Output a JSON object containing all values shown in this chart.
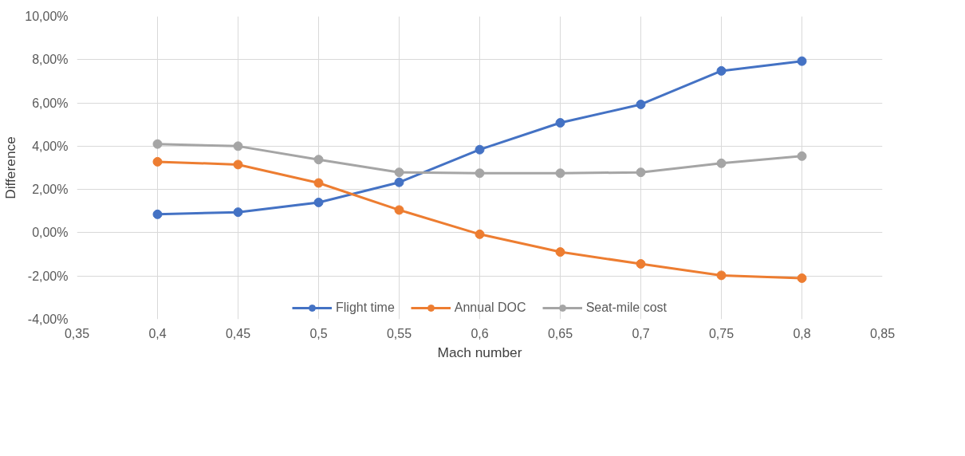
{
  "chart_data": {
    "type": "line",
    "xlabel": "Mach number",
    "ylabel": "Difference",
    "x": [
      0.4,
      0.45,
      0.5,
      0.55,
      0.6,
      0.65,
      0.7,
      0.75,
      0.8
    ],
    "series": [
      {
        "name": "Flight time",
        "color": "#4472c4",
        "values": [
          0.85,
          0.95,
          1.4,
          2.33,
          3.84,
          5.08,
          5.93,
          7.48,
          7.93
        ]
      },
      {
        "name": "Annual DOC",
        "color": "#ed7d31",
        "values": [
          3.28,
          3.15,
          2.3,
          1.05,
          -0.07,
          -0.89,
          -1.44,
          -1.97,
          -2.1
        ]
      },
      {
        "name": "Seat-mile cost",
        "color": "#a5a5a5",
        "values": [
          4.1,
          4.0,
          3.38,
          2.79,
          2.75,
          2.75,
          2.79,
          3.21,
          3.54
        ]
      }
    ],
    "xlim": [
      0.35,
      0.85
    ],
    "xticks": [
      {
        "value": 0.35,
        "label": "0,35"
      },
      {
        "value": 0.4,
        "label": "0,4"
      },
      {
        "value": 0.45,
        "label": "0,45"
      },
      {
        "value": 0.5,
        "label": "0,5"
      },
      {
        "value": 0.55,
        "label": "0,55"
      },
      {
        "value": 0.6,
        "label": "0,6"
      },
      {
        "value": 0.65,
        "label": "0,65"
      },
      {
        "value": 0.7,
        "label": "0,7"
      },
      {
        "value": 0.75,
        "label": "0,75"
      },
      {
        "value": 0.8,
        "label": "0,8"
      },
      {
        "value": 0.85,
        "label": "0,85"
      }
    ],
    "ylim": [
      -4,
      10
    ],
    "yticks": [
      {
        "value": -4,
        "label": "-4,00%"
      },
      {
        "value": -2,
        "label": "-2,00%"
      },
      {
        "value": 0,
        "label": "0,00%"
      },
      {
        "value": 2,
        "label": "2,00%"
      },
      {
        "value": 4,
        "label": "4,00%"
      },
      {
        "value": 6,
        "label": "6,00%"
      },
      {
        "value": 8,
        "label": "8,00%"
      },
      {
        "value": 10,
        "label": "10,00%"
      }
    ],
    "grid": true,
    "legend": "bottom",
    "marker": "circle",
    "line_style": "solid"
  }
}
